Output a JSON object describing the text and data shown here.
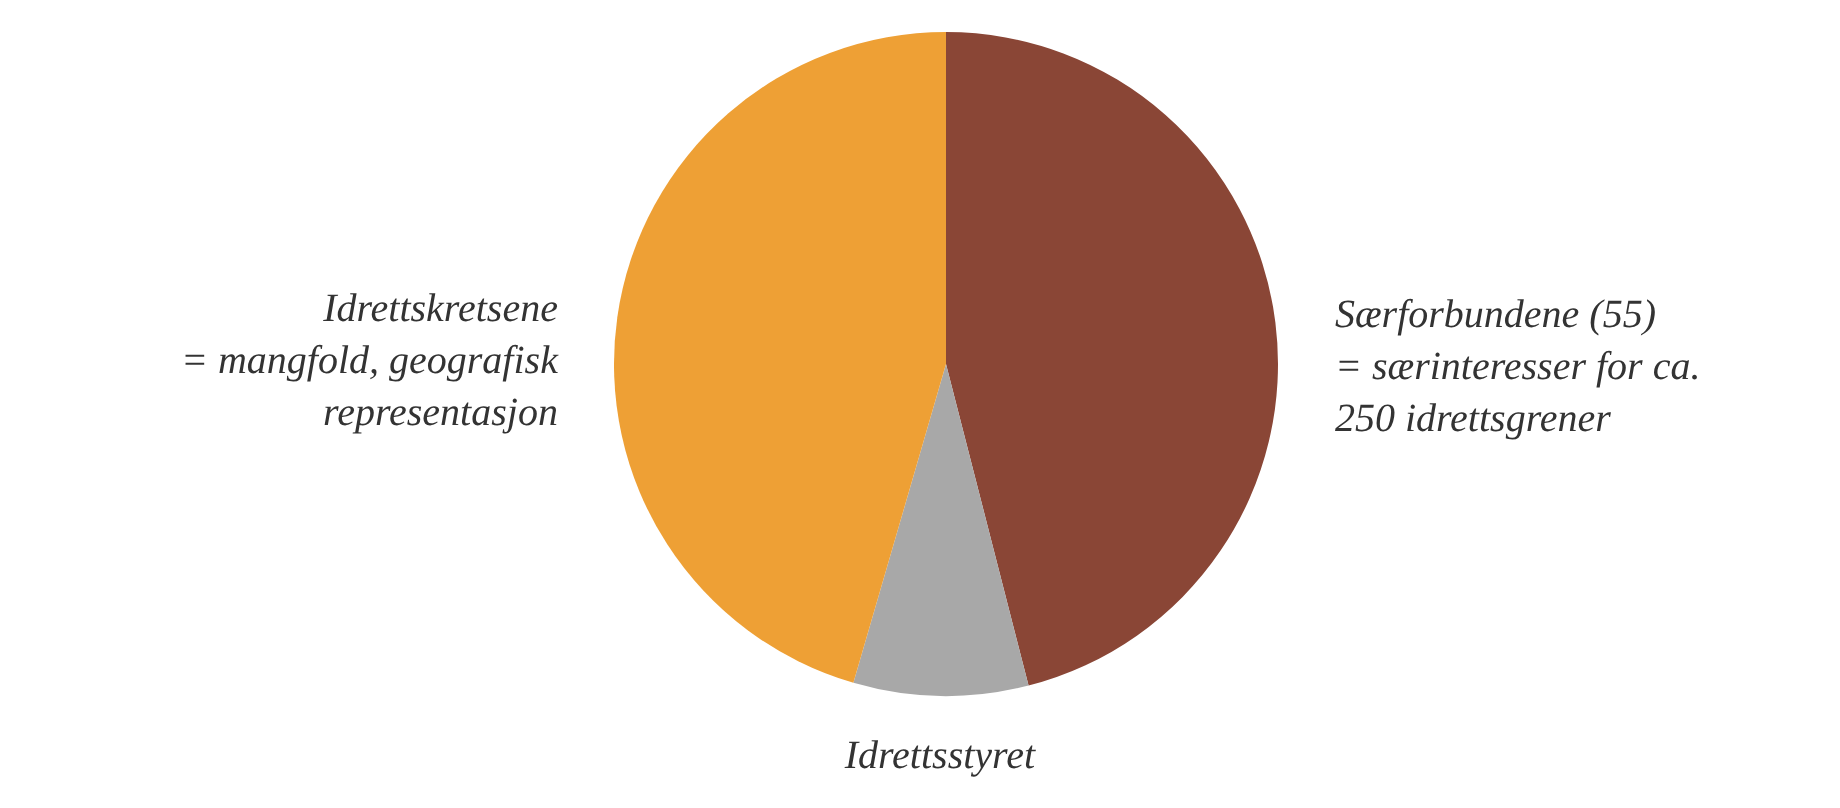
{
  "chart_data": {
    "type": "pie",
    "categories": [
      "Særforbundene (55)\n= særinteresser for ca.\n250 idrettsgrener",
      "Idrettsstyret",
      "Idrettskretsene\n= mangfold, geografisk\nrepresentasjon"
    ],
    "values": [
      46,
      8.5,
      45.5
    ],
    "colors": [
      "#8a4636",
      "#a8a8a8",
      "#eea035"
    ]
  }
}
